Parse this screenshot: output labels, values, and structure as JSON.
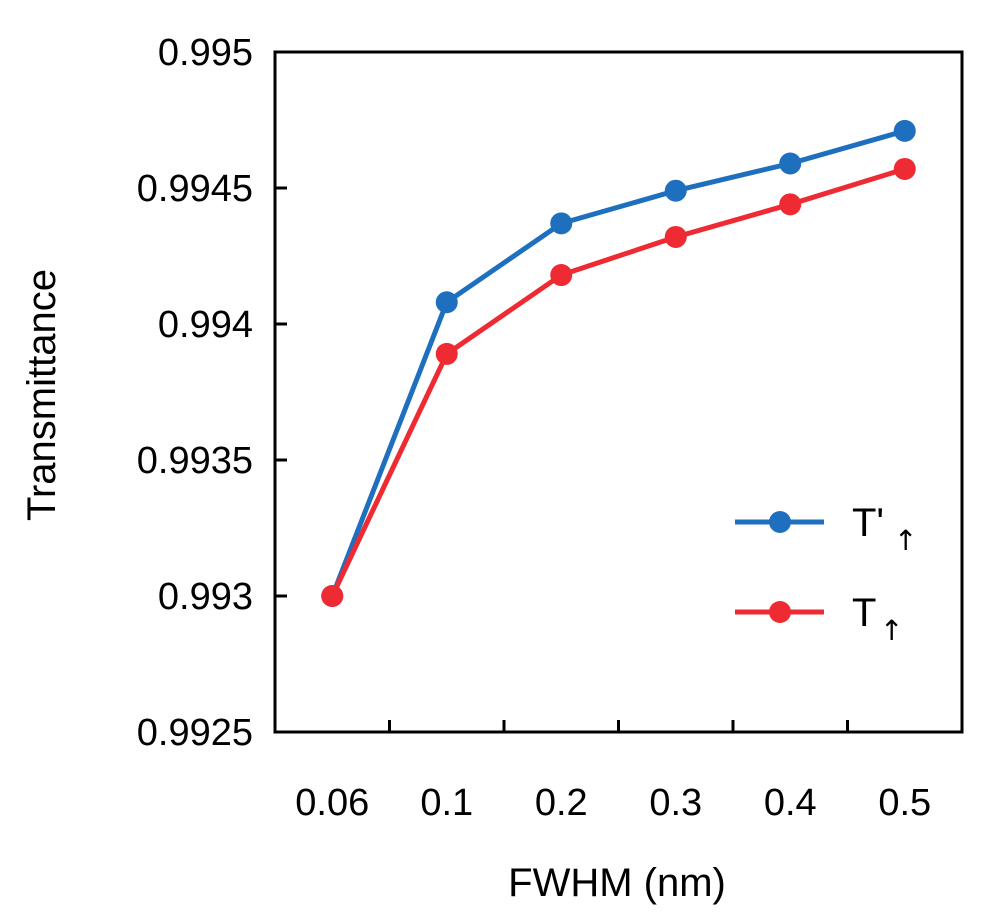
{
  "chart_data": {
    "type": "line",
    "title": "",
    "xlabel": "FWHM (nm)",
    "ylabel": "Transmittance",
    "categories": [
      "0.06",
      "0.1",
      "0.2",
      "0.3",
      "0.4",
      "0.5"
    ],
    "ylim": [
      0.9925,
      0.995
    ],
    "yticks": [
      {
        "value": 0.9925,
        "label": "0.9925"
      },
      {
        "value": 0.993,
        "label": "0.993"
      },
      {
        "value": 0.9935,
        "label": "0.9935"
      },
      {
        "value": 0.994,
        "label": "0.994"
      },
      {
        "value": 0.9945,
        "label": "0.9945"
      },
      {
        "value": 0.995,
        "label": "0.995"
      }
    ],
    "grid": false,
    "legend_position": "right-center",
    "series": [
      {
        "name": "T'",
        "subscript": "↑",
        "color": "#1f6fbf",
        "values": [
          0.993,
          0.99408,
          0.99437,
          0.99449,
          0.99459,
          0.99471
        ]
      },
      {
        "name": "T",
        "subscript": "↑",
        "color": "#ee2a33",
        "values": [
          0.993,
          0.99389,
          0.99418,
          0.99432,
          0.99444,
          0.99457
        ]
      }
    ]
  }
}
